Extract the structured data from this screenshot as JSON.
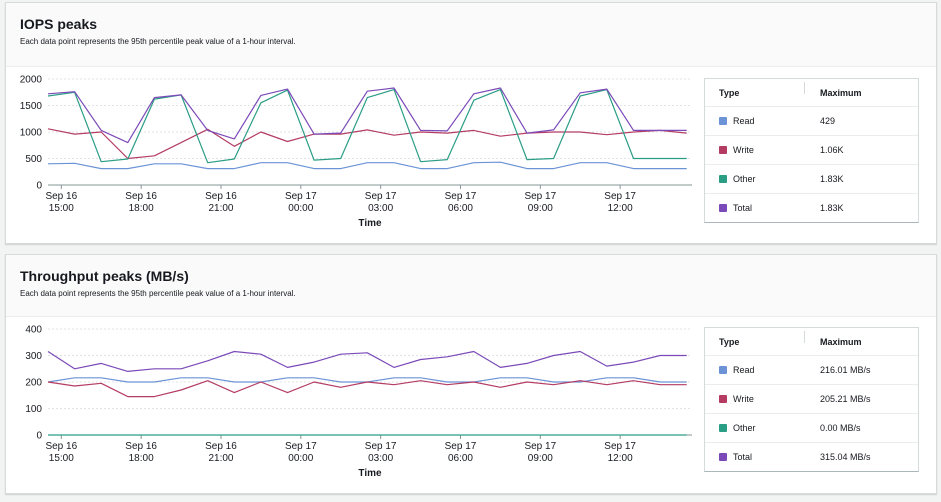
{
  "panels": [
    {
      "title": "IOPS peaks",
      "description": "Each data point represents the 95th percentile peak value of a 1-hour interval.",
      "table": {
        "header_type": "Type",
        "header_max": "Maximum",
        "rows": [
          {
            "type": "Read",
            "max": "429",
            "color": "#6b93d6"
          },
          {
            "type": "Write",
            "max": "1.06K",
            "color": "#b43c63"
          },
          {
            "type": "Other",
            "max": "1.83K",
            "color": "#2a9d85"
          },
          {
            "type": "Total",
            "max": "1.83K",
            "color": "#7b4ab8"
          }
        ]
      }
    },
    {
      "title": "Throughput peaks (MB/s)",
      "description": "Each data point represents the 95th percentile peak value of a 1-hour interval.",
      "table": {
        "header_type": "Type",
        "header_max": "Maximum",
        "rows": [
          {
            "type": "Read",
            "max": "216.01 MB/s",
            "color": "#6b93d6"
          },
          {
            "type": "Write",
            "max": "205.21 MB/s",
            "color": "#b43c63"
          },
          {
            "type": "Other",
            "max": "0.00 MB/s",
            "color": "#2a9d85"
          },
          {
            "type": "Total",
            "max": "315.04 MB/s",
            "color": "#7b4ab8"
          }
        ]
      }
    }
  ],
  "chart_data": [
    {
      "type": "line",
      "title": "IOPS peaks",
      "xlabel": "Time",
      "ylabel": "",
      "ylim": [
        0,
        2000
      ],
      "yticks": [
        0,
        500,
        1000,
        1500,
        2000
      ],
      "xtick_positions": [
        0,
        3,
        6,
        9,
        12,
        15,
        18,
        21
      ],
      "xtick_labels": [
        [
          "Sep 16",
          "15:00"
        ],
        [
          "Sep 16",
          "18:00"
        ],
        [
          "Sep 16",
          "21:00"
        ],
        [
          "Sep 17",
          "00:00"
        ],
        [
          "Sep 17",
          "03:00"
        ],
        [
          "Sep 17",
          "06:00"
        ],
        [
          "Sep 17",
          "09:00"
        ],
        [
          "Sep 17",
          "12:00"
        ]
      ],
      "x_hours": [
        -0.5,
        0.5,
        1.5,
        2.5,
        3.5,
        4.5,
        5.5,
        6.5,
        7.5,
        8.5,
        9.5,
        10.5,
        11.5,
        12.5,
        13.5,
        14.5,
        15.5,
        16.5,
        17.5,
        18.5,
        19.5,
        20.5,
        21.5,
        22.5,
        23.5
      ],
      "series": [
        {
          "name": "Read",
          "color": "#6b93d6",
          "values": [
            400,
            410,
            310,
            310,
            400,
            400,
            310,
            310,
            420,
            420,
            310,
            310,
            420,
            420,
            310,
            310,
            420,
            430,
            310,
            310,
            420,
            420,
            310,
            310,
            310
          ]
        },
        {
          "name": "Write",
          "color": "#b43c63",
          "values": [
            1060,
            960,
            1000,
            500,
            550,
            800,
            1050,
            730,
            1000,
            820,
            960,
            960,
            1040,
            940,
            1000,
            980,
            1030,
            920,
            980,
            1000,
            1000,
            950,
            1000,
            1030,
            980
          ]
        },
        {
          "name": "Other",
          "color": "#2a9d85",
          "values": [
            1680,
            1750,
            440,
            490,
            1620,
            1700,
            420,
            490,
            1550,
            1790,
            470,
            500,
            1650,
            1800,
            440,
            480,
            1600,
            1800,
            480,
            500,
            1680,
            1800,
            500,
            500,
            500
          ]
        },
        {
          "name": "Total",
          "color": "#7b4ab8",
          "values": [
            1720,
            1760,
            1030,
            800,
            1650,
            1700,
            1030,
            870,
            1690,
            1810,
            960,
            980,
            1770,
            1830,
            1030,
            1020,
            1720,
            1830,
            980,
            1040,
            1740,
            1810,
            1030,
            1030,
            1030
          ]
        }
      ]
    },
    {
      "type": "line",
      "title": "Throughput peaks (MB/s)",
      "xlabel": "Time",
      "ylabel": "",
      "ylim": [
        0,
        400
      ],
      "yticks": [
        0,
        100,
        200,
        300,
        400
      ],
      "xtick_positions": [
        0,
        3,
        6,
        9,
        12,
        15,
        18,
        21
      ],
      "xtick_labels": [
        [
          "Sep 16",
          "15:00"
        ],
        [
          "Sep 16",
          "18:00"
        ],
        [
          "Sep 16",
          "21:00"
        ],
        [
          "Sep 17",
          "00:00"
        ],
        [
          "Sep 17",
          "03:00"
        ],
        [
          "Sep 17",
          "06:00"
        ],
        [
          "Sep 17",
          "09:00"
        ],
        [
          "Sep 17",
          "12:00"
        ]
      ],
      "x_hours": [
        -0.5,
        0.5,
        1.5,
        2.5,
        3.5,
        4.5,
        5.5,
        6.5,
        7.5,
        8.5,
        9.5,
        10.5,
        11.5,
        12.5,
        13.5,
        14.5,
        15.5,
        16.5,
        17.5,
        18.5,
        19.5,
        20.5,
        21.5,
        22.5,
        23.5
      ],
      "series": [
        {
          "name": "Read",
          "color": "#6b93d6",
          "values": [
            200,
            216,
            216,
            200,
            200,
            216,
            216,
            200,
            200,
            216,
            216,
            200,
            200,
            216,
            216,
            200,
            200,
            216,
            216,
            200,
            200,
            216,
            216,
            200,
            200
          ]
        },
        {
          "name": "Write",
          "color": "#b43c63",
          "values": [
            200,
            185,
            195,
            145,
            145,
            170,
            205,
            160,
            200,
            160,
            200,
            180,
            200,
            190,
            205,
            190,
            200,
            180,
            200,
            190,
            205,
            190,
            205,
            190,
            190
          ]
        },
        {
          "name": "Other",
          "color": "#2a9d85",
          "values": [
            0,
            0,
            0,
            0,
            0,
            0,
            0,
            0,
            0,
            0,
            0,
            0,
            0,
            0,
            0,
            0,
            0,
            0,
            0,
            0,
            0,
            0,
            0,
            0,
            0
          ]
        },
        {
          "name": "Total",
          "color": "#7b4ab8",
          "values": [
            315,
            250,
            270,
            240,
            250,
            250,
            280,
            315,
            305,
            255,
            275,
            305,
            310,
            255,
            285,
            295,
            315,
            255,
            270,
            300,
            315,
            260,
            275,
            300,
            300
          ]
        }
      ]
    }
  ]
}
